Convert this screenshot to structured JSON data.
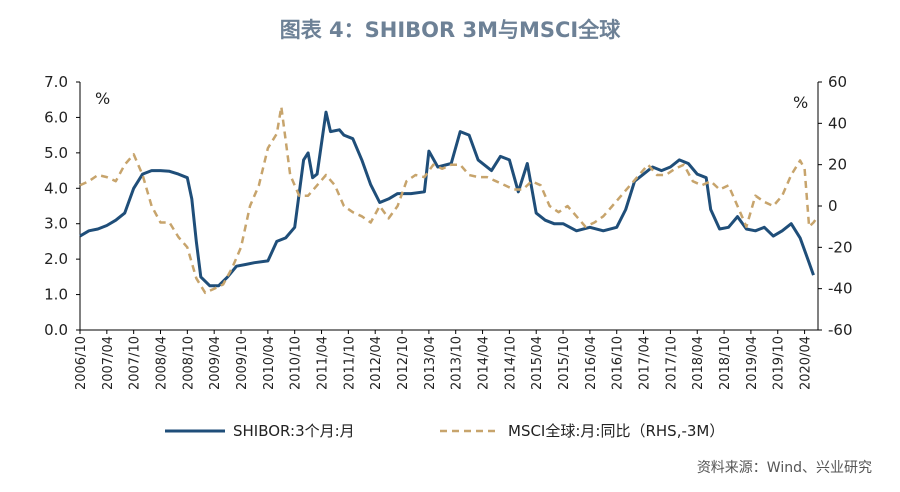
{
  "title": "图表 4：SHIBOR 3M与MSCI全球",
  "source": "资料来源：Wind、兴业研究",
  "colors": {
    "shibor": "#1f4e79",
    "msci": "#c7a46c",
    "axis": "#000000",
    "title": "#6d8196"
  },
  "chart_data": {
    "type": "line",
    "title": "图表 4：SHIBOR 3M与MSCI全球",
    "left_unit": "%",
    "right_unit": "%",
    "ylim_left": [
      0,
      7
    ],
    "ylim_right": [
      -60,
      60
    ],
    "yticks_left": [
      "0.0",
      "1.0",
      "2.0",
      "3.0",
      "4.0",
      "5.0",
      "6.0",
      "7.0"
    ],
    "yticks_right": [
      "-60",
      "-40",
      "-20",
      "0",
      "20",
      "40",
      "60"
    ],
    "x_start": "2006-10",
    "x_end": "2020-07",
    "x_tick_labels": [
      "2006/10",
      "2007/04",
      "2007/10",
      "2008/04",
      "2008/10",
      "2009/04",
      "2009/10",
      "2010/04",
      "2010/10",
      "2011/04",
      "2011/10",
      "2012/04",
      "2012/10",
      "2013/04",
      "2013/10",
      "2014/04",
      "2014/10",
      "2015/04",
      "2015/10",
      "2016/04",
      "2016/10",
      "2017/04",
      "2017/10",
      "2018/04",
      "2018/10",
      "2019/04",
      "2019/10",
      "2020/04"
    ],
    "legend_position": "bottom",
    "series": [
      {
        "name": "SHIBOR:3个月:月",
        "axis": "left",
        "style": "solid",
        "points": [
          [
            "2006-10",
            2.65
          ],
          [
            "2006-12",
            2.8
          ],
          [
            "2007-02",
            2.85
          ],
          [
            "2007-04",
            2.95
          ],
          [
            "2007-06",
            3.1
          ],
          [
            "2007-08",
            3.3
          ],
          [
            "2007-10",
            4.0
          ],
          [
            "2007-12",
            4.4
          ],
          [
            "2008-02",
            4.5
          ],
          [
            "2008-04",
            4.5
          ],
          [
            "2008-06",
            4.48
          ],
          [
            "2008-08",
            4.4
          ],
          [
            "2008-10",
            4.3
          ],
          [
            "2008-11",
            3.7
          ],
          [
            "2008-12",
            2.5
          ],
          [
            "2009-01",
            1.5
          ],
          [
            "2009-03",
            1.25
          ],
          [
            "2009-05",
            1.25
          ],
          [
            "2009-07",
            1.5
          ],
          [
            "2009-09",
            1.8
          ],
          [
            "2009-11",
            1.85
          ],
          [
            "2010-01",
            1.9
          ],
          [
            "2010-04",
            1.95
          ],
          [
            "2010-06",
            2.5
          ],
          [
            "2010-08",
            2.6
          ],
          [
            "2010-10",
            2.9
          ],
          [
            "2010-12",
            4.8
          ],
          [
            "2011-01",
            5.0
          ],
          [
            "2011-02",
            4.3
          ],
          [
            "2011-03",
            4.4
          ],
          [
            "2011-05",
            6.15
          ],
          [
            "2011-06",
            5.6
          ],
          [
            "2011-08",
            5.65
          ],
          [
            "2011-09",
            5.5
          ],
          [
            "2011-11",
            5.4
          ],
          [
            "2012-01",
            4.8
          ],
          [
            "2012-03",
            4.1
          ],
          [
            "2012-05",
            3.6
          ],
          [
            "2012-07",
            3.7
          ],
          [
            "2012-09",
            3.85
          ],
          [
            "2012-12",
            3.85
          ],
          [
            "2013-03",
            3.9
          ],
          [
            "2013-04",
            5.05
          ],
          [
            "2013-06",
            4.6
          ],
          [
            "2013-09",
            4.7
          ],
          [
            "2013-11",
            5.6
          ],
          [
            "2014-01",
            5.5
          ],
          [
            "2014-03",
            4.8
          ],
          [
            "2014-06",
            4.5
          ],
          [
            "2014-08",
            4.9
          ],
          [
            "2014-10",
            4.8
          ],
          [
            "2014-12",
            3.9
          ],
          [
            "2015-02",
            4.7
          ],
          [
            "2015-04",
            3.3
          ],
          [
            "2015-06",
            3.1
          ],
          [
            "2015-08",
            3.0
          ],
          [
            "2015-10",
            3.0
          ],
          [
            "2016-01",
            2.8
          ],
          [
            "2016-04",
            2.9
          ],
          [
            "2016-07",
            2.8
          ],
          [
            "2016-10",
            2.9
          ],
          [
            "2016-12",
            3.4
          ],
          [
            "2017-02",
            4.2
          ],
          [
            "2017-04",
            4.4
          ],
          [
            "2017-06",
            4.6
          ],
          [
            "2017-08",
            4.5
          ],
          [
            "2017-10",
            4.6
          ],
          [
            "2017-12",
            4.8
          ],
          [
            "2018-02",
            4.7
          ],
          [
            "2018-04",
            4.4
          ],
          [
            "2018-06",
            4.3
          ],
          [
            "2018-07",
            3.4
          ],
          [
            "2018-09",
            2.85
          ],
          [
            "2018-11",
            2.9
          ],
          [
            "2019-01",
            3.2
          ],
          [
            "2019-03",
            2.85
          ],
          [
            "2019-05",
            2.8
          ],
          [
            "2019-07",
            2.9
          ],
          [
            "2019-09",
            2.65
          ],
          [
            "2019-11",
            2.8
          ],
          [
            "2020-01",
            3.0
          ],
          [
            "2020-03",
            2.6
          ],
          [
            "2020-05",
            1.9
          ],
          [
            "2020-06",
            1.55
          ]
        ]
      },
      {
        "name": "MSCI全球:月:同比（RHS,-3M）",
        "axis": "right",
        "style": "dashed",
        "points": [
          [
            "2006-10",
            10
          ],
          [
            "2006-12",
            12
          ],
          [
            "2007-02",
            15
          ],
          [
            "2007-04",
            14
          ],
          [
            "2007-06",
            12
          ],
          [
            "2007-08",
            20
          ],
          [
            "2007-10",
            25
          ],
          [
            "2007-12",
            15
          ],
          [
            "2008-02",
            0
          ],
          [
            "2008-04",
            -8
          ],
          [
            "2008-06",
            -8
          ],
          [
            "2008-08",
            -15
          ],
          [
            "2008-10",
            -20
          ],
          [
            "2008-12",
            -35
          ],
          [
            "2009-02",
            -42
          ],
          [
            "2009-04",
            -40
          ],
          [
            "2009-06",
            -38
          ],
          [
            "2009-08",
            -30
          ],
          [
            "2009-10",
            -20
          ],
          [
            "2009-12",
            0
          ],
          [
            "2010-02",
            10
          ],
          [
            "2010-04",
            28
          ],
          [
            "2010-06",
            35
          ],
          [
            "2010-07",
            48
          ],
          [
            "2010-09",
            15
          ],
          [
            "2010-11",
            5
          ],
          [
            "2011-01",
            5
          ],
          [
            "2011-03",
            10
          ],
          [
            "2011-05",
            15
          ],
          [
            "2011-07",
            10
          ],
          [
            "2011-09",
            0
          ],
          [
            "2011-11",
            -3
          ],
          [
            "2012-01",
            -5
          ],
          [
            "2012-03",
            -8
          ],
          [
            "2012-05",
            0
          ],
          [
            "2012-07",
            -6
          ],
          [
            "2012-09",
            0
          ],
          [
            "2012-11",
            12
          ],
          [
            "2013-01",
            15
          ],
          [
            "2013-03",
            14
          ],
          [
            "2013-05",
            20
          ],
          [
            "2013-07",
            18
          ],
          [
            "2013-09",
            20
          ],
          [
            "2013-11",
            20
          ],
          [
            "2014-01",
            15
          ],
          [
            "2014-03",
            14
          ],
          [
            "2014-05",
            14
          ],
          [
            "2014-07",
            12
          ],
          [
            "2014-09",
            10
          ],
          [
            "2014-11",
            8
          ],
          [
            "2015-01",
            8
          ],
          [
            "2015-03",
            12
          ],
          [
            "2015-05",
            10
          ],
          [
            "2015-07",
            0
          ],
          [
            "2015-09",
            -3
          ],
          [
            "2015-11",
            0
          ],
          [
            "2016-01",
            -5
          ],
          [
            "2016-03",
            -10
          ],
          [
            "2016-05",
            -8
          ],
          [
            "2016-07",
            -5
          ],
          [
            "2016-09",
            0
          ],
          [
            "2016-11",
            5
          ],
          [
            "2017-01",
            10
          ],
          [
            "2017-03",
            15
          ],
          [
            "2017-05",
            20
          ],
          [
            "2017-07",
            15
          ],
          [
            "2017-09",
            15
          ],
          [
            "2017-11",
            18
          ],
          [
            "2018-01",
            20
          ],
          [
            "2018-03",
            12
          ],
          [
            "2018-05",
            10
          ],
          [
            "2018-07",
            12
          ],
          [
            "2018-09",
            8
          ],
          [
            "2018-11",
            10
          ],
          [
            "2019-01",
            0
          ],
          [
            "2019-03",
            -10
          ],
          [
            "2019-05",
            5
          ],
          [
            "2019-07",
            2
          ],
          [
            "2019-09",
            0
          ],
          [
            "2019-11",
            5
          ],
          [
            "2020-01",
            15
          ],
          [
            "2020-03",
            22
          ],
          [
            "2020-04",
            18
          ],
          [
            "2020-05",
            -10
          ],
          [
            "2020-06",
            -8
          ],
          [
            "2020-07",
            -5
          ]
        ]
      }
    ]
  }
}
